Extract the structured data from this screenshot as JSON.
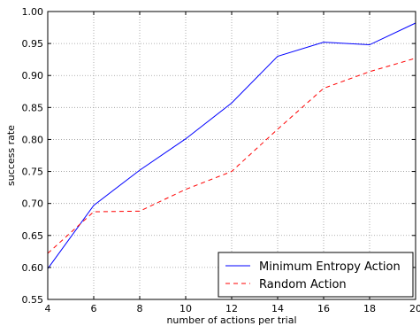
{
  "chart_data": {
    "type": "line",
    "title": "",
    "xlabel": "number of actions per trial",
    "ylabel": "success rate",
    "xlim": [
      4,
      20
    ],
    "ylim": [
      0.55,
      1.0
    ],
    "xticks": [
      "4",
      "6",
      "8",
      "10",
      "12",
      "14",
      "16",
      "18",
      "20"
    ],
    "yticks": [
      "0.55",
      "0.60",
      "0.65",
      "0.70",
      "0.75",
      "0.80",
      "0.85",
      "0.90",
      "0.95",
      "1.00"
    ],
    "grid": true,
    "legend_position": "lower-right",
    "x": [
      4,
      6,
      8,
      10,
      12,
      14,
      16,
      18,
      20
    ],
    "series": [
      {
        "name": "Minimum Entropy Action",
        "color": "#0000ff",
        "style": "solid",
        "values": [
          0.598,
          0.697,
          0.752,
          0.801,
          0.857,
          0.93,
          0.952,
          0.948,
          0.982
        ]
      },
      {
        "name": "Random Action",
        "color": "#ff0000",
        "style": "dashed",
        "values": [
          0.622,
          0.687,
          0.688,
          0.722,
          0.75,
          0.816,
          0.88,
          0.906,
          0.927
        ]
      }
    ]
  }
}
